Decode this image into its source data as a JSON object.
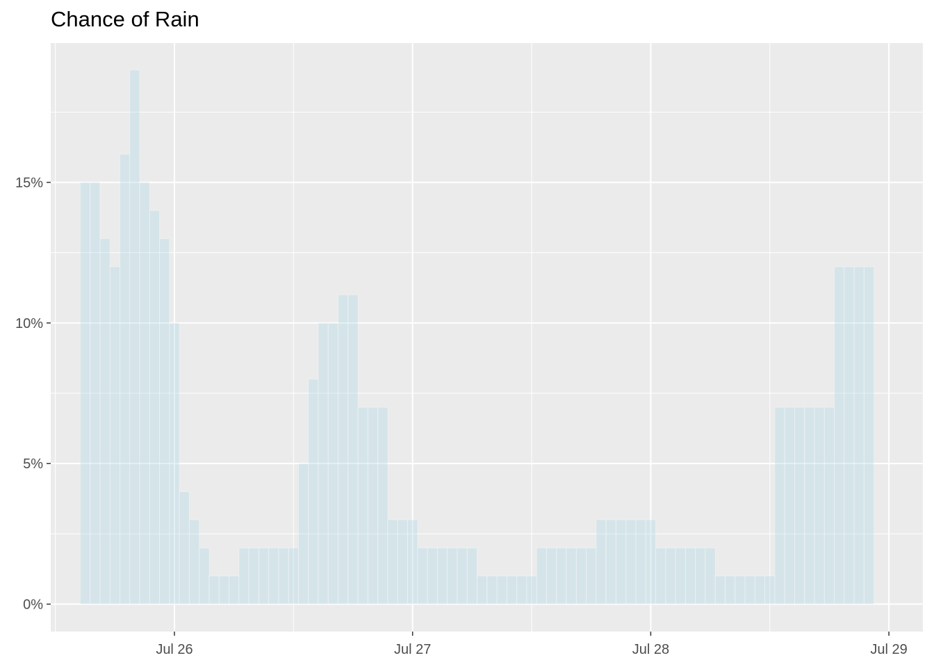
{
  "chart_data": {
    "type": "bar",
    "title": "Chance of Rain",
    "xlabel": "",
    "ylabel": "",
    "x_start": "Jul 25 15:00",
    "x_step": "hourly",
    "x_ticks": [
      "Jul 26",
      "Jul 27",
      "Jul 28",
      "Jul 29"
    ],
    "y_ticks": [
      "0%",
      "5%",
      "10%",
      "15%"
    ],
    "ylim": [
      0,
      0.2
    ],
    "values": [
      0.15,
      0.15,
      0.13,
      0.12,
      0.16,
      0.19,
      0.15,
      0.14,
      0.13,
      0.1,
      0.04,
      0.03,
      0.02,
      0.01,
      0.01,
      0.01,
      0.02,
      0.02,
      0.02,
      0.02,
      0.02,
      0.02,
      0.05,
      0.08,
      0.1,
      0.1,
      0.11,
      0.11,
      0.07,
      0.07,
      0.07,
      0.03,
      0.03,
      0.03,
      0.02,
      0.02,
      0.02,
      0.02,
      0.02,
      0.02,
      0.01,
      0.01,
      0.01,
      0.01,
      0.01,
      0.01,
      0.02,
      0.02,
      0.02,
      0.02,
      0.02,
      0.02,
      0.03,
      0.03,
      0.03,
      0.03,
      0.03,
      0.03,
      0.02,
      0.02,
      0.02,
      0.02,
      0.02,
      0.02,
      0.01,
      0.01,
      0.01,
      0.01,
      0.01,
      0.01,
      0.07,
      0.07,
      0.07,
      0.07,
      0.07,
      0.07,
      0.12,
      0.12,
      0.12,
      0.12
    ],
    "bar_color": "#add8e6",
    "panel_background": "#ebebeb",
    "grid": true,
    "legend": "none"
  }
}
